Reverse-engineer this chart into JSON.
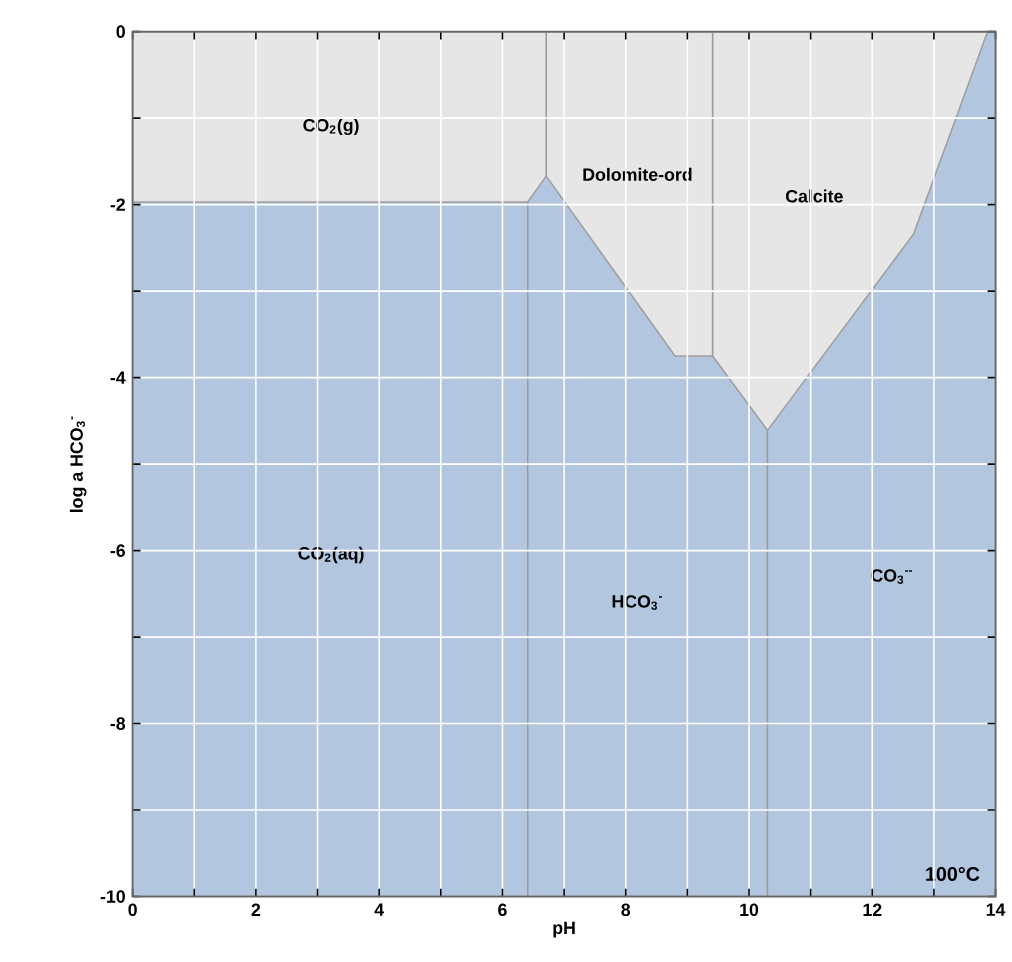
{
  "chart_data": {
    "type": "area",
    "xlabel": "pH",
    "ylabel": "log a HCO$_{3}$$^{-}$",
    "xlim": [
      0,
      14
    ],
    "ylim": [
      -10,
      0
    ],
    "xticks": [
      0,
      {
        "value": 1,
        "label": null
      },
      2,
      {
        "value": 3,
        "label": null
      },
      4,
      {
        "value": 5,
        "label": null
      },
      6,
      {
        "value": 7,
        "label": null
      },
      8,
      {
        "value": 9,
        "label": null
      },
      10,
      {
        "value": 11,
        "label": null
      },
      12,
      {
        "value": 13,
        "label": null
      },
      14
    ],
    "yticks": [
      -10,
      {
        "value": -9,
        "label": null
      },
      -8,
      {
        "value": -7,
        "label": null
      },
      -6,
      {
        "value": -5,
        "label": null
      },
      -4,
      {
        "value": -3,
        "label": null
      },
      -2,
      {
        "value": -1,
        "label": null
      },
      0
    ],
    "grid": true,
    "series": [
      {
        "color": "#e6e6e6",
        "x": [
          0,
          6.41,
          6.71,
          8.8,
          9.41,
          10.3,
          12.67,
          13.87,
          14
        ],
        "values": [
          -1.97,
          -1.97,
          -1.67,
          -3.75,
          -3.75,
          -4.61,
          -2.34,
          0,
          0
        ]
      },
      {
        "type": "line",
        "color": "#9a9a9a",
        "x": [
          6.41,
          6.41
        ],
        "values": [
          -10,
          -1.97
        ]
      },
      {
        "type": "line",
        "color": "#9a9a9a",
        "x": [
          6.71,
          6.71
        ],
        "values": [
          -1.67,
          0
        ]
      },
      {
        "type": "line",
        "color": "#9a9a9a",
        "x": [
          9.41,
          9.41
        ],
        "values": [
          -3.75,
          0
        ]
      },
      {
        "type": "line",
        "color": "#9a9a9a",
        "x": [
          10.3,
          10.3
        ],
        "values": [
          -10,
          -4.61
        ]
      }
    ],
    "annotations": [
      "CO$_{2}$(g)",
      "Dolomite-ord",
      "Calcite",
      "CO$_{2}$(aq)",
      "HCO$_{3}$$^{-}$",
      "CO$_{3}$$^{--}$",
      "100°C"
    ]
  }
}
